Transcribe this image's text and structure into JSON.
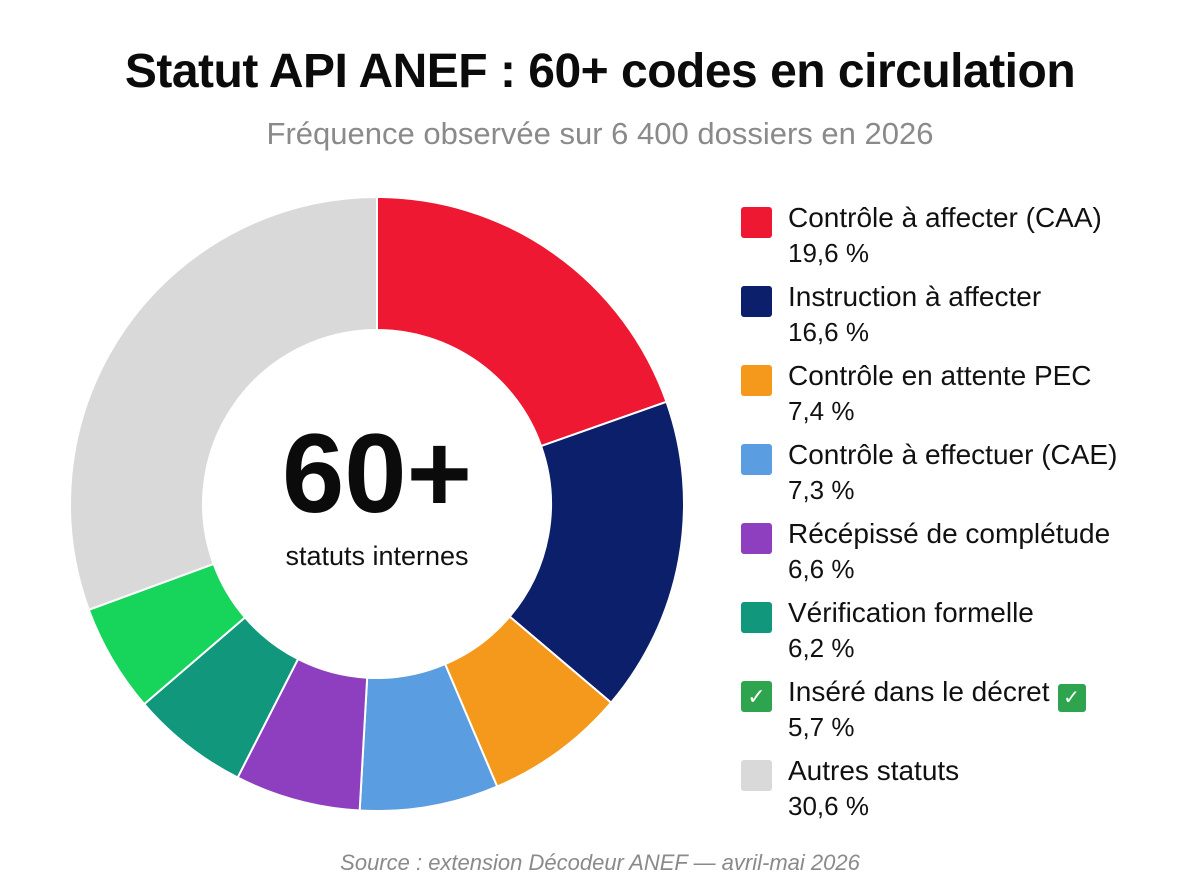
{
  "chart_data": {
    "type": "pie",
    "title": "Statut API ANEF : 60+ codes en circulation",
    "subtitle": "Fréquence observée sur 6 400 dossiers en 2026",
    "center": {
      "value": "60+",
      "label": "statuts internes"
    },
    "slices": [
      {
        "name": "Contrôle à affecter (CAA)",
        "value": 19.6,
        "value_label": "19,6 %",
        "color": "#ee1832",
        "icon": ""
      },
      {
        "name": "Instruction à affecter",
        "value": 16.6,
        "value_label": "16,6 %",
        "color": "#0b1f6b",
        "icon": ""
      },
      {
        "name": "Contrôle en attente PEC",
        "value": 7.4,
        "value_label": "7,4 %",
        "color": "#f5991c",
        "icon": ""
      },
      {
        "name": "Contrôle à effectuer (CAE)",
        "value": 7.3,
        "value_label": "7,3 %",
        "color": "#5a9de0",
        "icon": ""
      },
      {
        "name": "Récépissé de complétude",
        "value": 6.6,
        "value_label": "6,6 %",
        "color": "#8e3fbf",
        "icon": ""
      },
      {
        "name": "Vérification formelle",
        "value": 6.2,
        "value_label": "6,2 %",
        "color": "#10977c",
        "icon": ""
      },
      {
        "name": "Inséré dans le décret",
        "value": 5.7,
        "value_label": "5,7 %",
        "color": "#17d45a",
        "icon": "check-mark-icon"
      },
      {
        "name": "Autres statuts",
        "value": 30.6,
        "value_label": "30,6 %",
        "color": "#d9d9d9",
        "icon": ""
      }
    ],
    "legend_placement": "right",
    "source": "Source : extension Décodeur ANEF — avril-mai 2026"
  }
}
